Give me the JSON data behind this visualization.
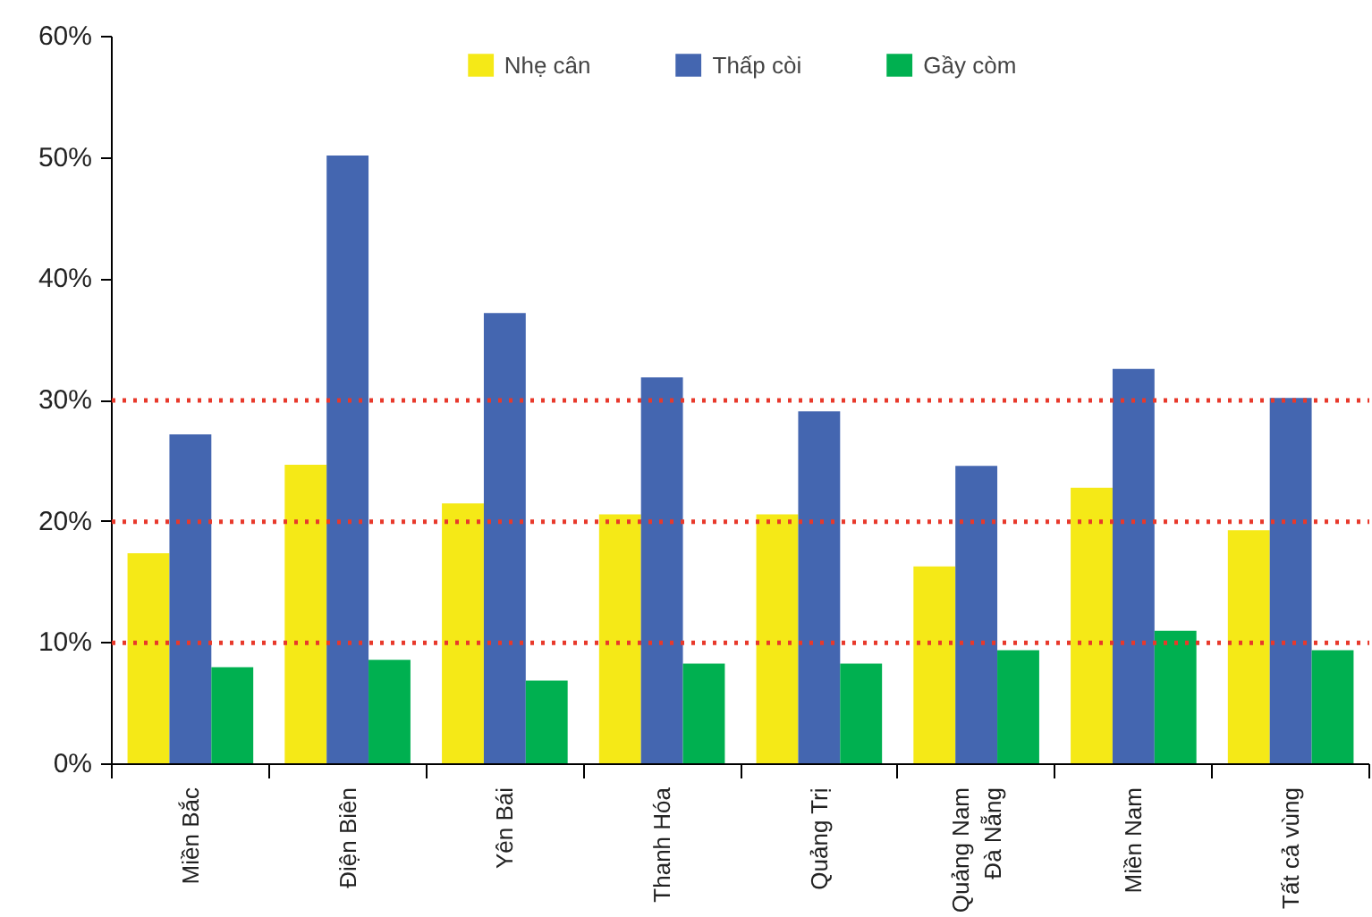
{
  "chart_data": {
    "type": "bar",
    "categories": [
      "Miền Bắc",
      "Điện Biên",
      "Yên Bái",
      "Thanh Hóa",
      "Quảng Trị",
      "Quảng Nam\nĐà Nẵng",
      "Miền Nam",
      "Tất cả vùng"
    ],
    "series": [
      {
        "name": "Nhẹ cân",
        "color": "#f5e917",
        "values": [
          17.4,
          24.7,
          21.5,
          20.6,
          20.6,
          16.3,
          22.8,
          19.3
        ]
      },
      {
        "name": "Thấp còi",
        "color": "#4466b0",
        "values": [
          27.2,
          50.2,
          37.2,
          31.9,
          29.1,
          24.6,
          32.6,
          30.2
        ]
      },
      {
        "name": "Gầy còm",
        "color": "#00b050",
        "values": [
          8.0,
          8.6,
          6.9,
          8.3,
          8.3,
          9.4,
          11.0,
          9.4
        ]
      }
    ],
    "ylim": [
      0,
      60
    ],
    "yticks": [
      {
        "value": 0,
        "label": "0%"
      },
      {
        "value": 10,
        "label": "10%"
      },
      {
        "value": 20,
        "label": "20%"
      },
      {
        "value": 30,
        "label": "30%"
      },
      {
        "value": 40,
        "label": "40%"
      },
      {
        "value": 50,
        "label": "50%"
      },
      {
        "value": 60,
        "label": "60%"
      }
    ],
    "ref_lines": [
      {
        "axis": "y",
        "value": 10,
        "color": "#e8392b",
        "line_style": "dotted"
      },
      {
        "axis": "y",
        "value": 20,
        "color": "#e8392b",
        "line_style": "dotted"
      },
      {
        "axis": "y",
        "value": 30,
        "color": "#e8392b",
        "line_style": "dotted"
      }
    ],
    "grid": false,
    "legend": "top"
  }
}
